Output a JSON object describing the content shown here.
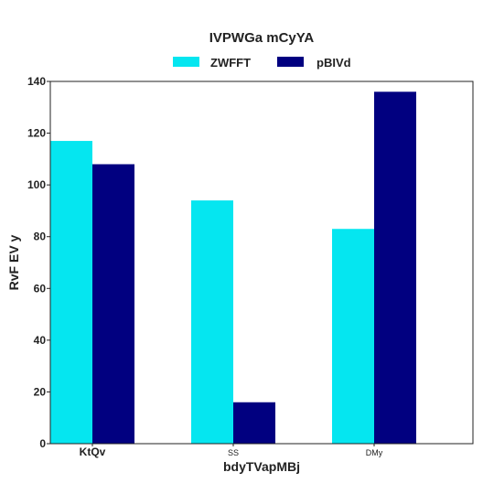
{
  "chart_data": {
    "type": "bar",
    "title": "IVPWGa mCyYA",
    "xlabel": "bdyTVapMBj",
    "ylabel": "RvF EV y",
    "categories": [
      "KtQv",
      "SS",
      "DMy"
    ],
    "series": [
      {
        "name": "ZWFFT",
        "color": "#05E6F0",
        "values": [
          117,
          94,
          83
        ]
      },
      {
        "name": "pBIVd",
        "color": "#010080",
        "values": [
          108,
          16,
          136
        ]
      }
    ],
    "ylim": [
      0,
      140
    ],
    "yticks": [
      0,
      20,
      40,
      60,
      80,
      100,
      120,
      140
    ],
    "grid": false,
    "legend_position": "top-center"
  }
}
